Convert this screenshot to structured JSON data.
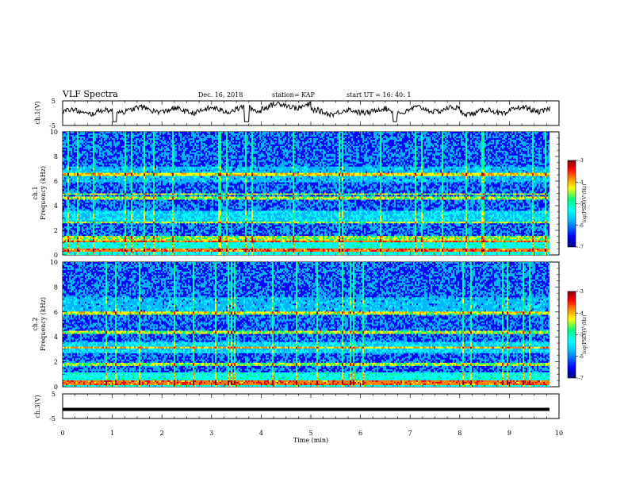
{
  "header": {
    "title": "VLF Spectra",
    "date": "Dec. 16, 2018",
    "station": "station= KAP",
    "start": "start  UT =   16: 40: 1"
  },
  "labels": {
    "ch1_v": "ch.1(V)",
    "ch2_spec": "ch.2",
    "ch1_spec": "ch.1",
    "freq": "Frequency (kHz)",
    "ch3_v": "ch.3(V)",
    "time": "Time  (min)",
    "colorbar": "log(PSD)(V²/Hz)"
  },
  "colors": {
    "spectrogram_scale": [
      "#000080",
      "#0000ff",
      "#00b4ff",
      "#00ffff",
      "#00ff80",
      "#ffff00",
      "#ff8000",
      "#ff0000",
      "#800000"
    ]
  },
  "chart_data": [
    {
      "type": "line",
      "panel": "ch1-voltage",
      "ylabel": "ch.1(V)",
      "ylim": [
        -5,
        5
      ],
      "yticks": [
        5,
        -5
      ],
      "xlim": [
        0,
        10
      ],
      "approx_level_by_minute": [
        0.5,
        1.5,
        1.0,
        1.5,
        3.0,
        0.5,
        1.0,
        1.5,
        0.5,
        1.5
      ]
    },
    {
      "type": "heatmap",
      "panel": "ch1-spectrogram",
      "ylabel": "Frequency (kHz)",
      "channel": "ch.1",
      "ylim": [
        0,
        10
      ],
      "yticks": [
        0,
        2,
        4,
        6,
        8,
        10
      ],
      "xlim": [
        0,
        10
      ],
      "colorbar": {
        "label": "log(PSD)(V²/Hz)",
        "range": [
          -7,
          -3
        ],
        "ticks": [
          -3,
          -4,
          -5,
          -6,
          -7
        ]
      }
    },
    {
      "type": "heatmap",
      "panel": "ch2-spectrogram",
      "ylabel": "Frequency (kHz)",
      "channel": "ch.2",
      "ylim": [
        0,
        10
      ],
      "yticks": [
        0,
        2,
        4,
        6,
        8,
        10
      ],
      "xlim": [
        0,
        10
      ],
      "colorbar": {
        "label": "log(PSD)(V²/Hz)",
        "range": [
          -7,
          -3
        ],
        "ticks": [
          -3,
          -4,
          -5,
          -6,
          -7
        ]
      }
    },
    {
      "type": "line",
      "panel": "ch3-voltage",
      "ylabel": "ch.3(V)",
      "ylim": [
        -5,
        5
      ],
      "yticks": [
        5,
        -5
      ],
      "xlim": [
        0,
        10
      ],
      "constant_level": -1.3
    }
  ],
  "xaxis": {
    "label": "Time  (min)",
    "ticks": [
      "0",
      "1",
      "2",
      "3",
      "4",
      "5",
      "6",
      "7",
      "8",
      "9",
      "10"
    ]
  }
}
